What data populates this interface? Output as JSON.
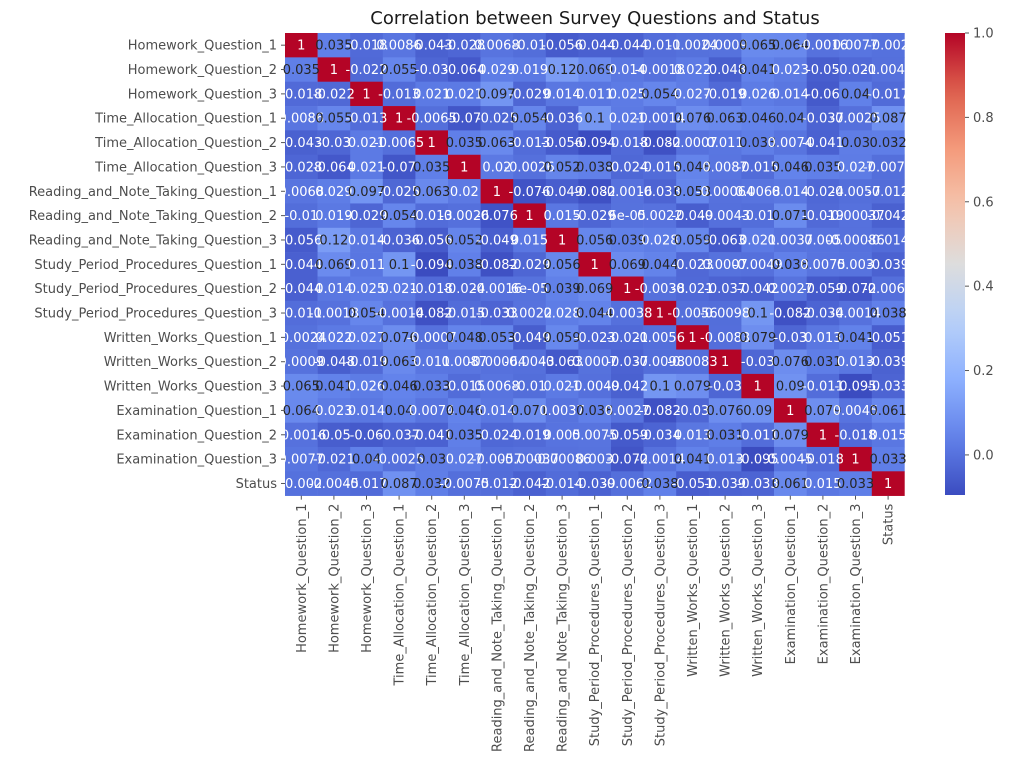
{
  "chart_data": {
    "type": "heatmap",
    "title": "Correlation between Survey Questions and Status",
    "xlabel": "",
    "ylabel": "",
    "labels": [
      "Homework_Question_1",
      "Homework_Question_2",
      "Homework_Question_3",
      "Time_Allocation_Question_1",
      "Time_Allocation_Question_2",
      "Time_Allocation_Question_3",
      "Reading_and_Note_Taking_Question_1",
      "Reading_and_Note_Taking_Question_2",
      "Reading_and_Note_Taking_Question_3",
      "Study_Period_Procedures_Question_1",
      "Study_Period_Procedures_Question_2",
      "Study_Period_Procedures_Question_3",
      "Written_Works_Question_1",
      "Written_Works_Question_2",
      "Written_Works_Question_3",
      "Examination_Question_1",
      "Examination_Question_2",
      "Examination_Question_3",
      "Status"
    ],
    "matrix": [
      [
        "1",
        "0.035",
        "-0.018",
        "0.0086",
        "-0.043",
        "-0.028",
        "0.0068",
        "-0.01",
        "-0.056",
        "-0.044",
        "-0.044",
        "-0.011",
        "-0.0024",
        "0.0009",
        "0.065",
        "0.064",
        "-0.0016",
        "0.0077",
        "-0.002"
      ],
      [
        "0.035",
        "1",
        "-0.022",
        "0.055",
        "-0.03",
        "-0.064",
        "0.029",
        "0.019",
        "0.12",
        "0.069",
        "0.014",
        "-0.0018",
        "0.022",
        "-0.048",
        "0.041",
        "0.023",
        "-0.05",
        "-0.021",
        "-0.0045"
      ],
      [
        "-0.018",
        "-0.022",
        "1",
        "-0.013",
        "0.021",
        "0.021",
        "0.097",
        "-0.029",
        "0.014",
        "0.011",
        "0.025",
        "0.054",
        "0.027",
        "-0.019",
        "0.026",
        "0.014",
        "-0.06",
        "0.04",
        "-0.017"
      ],
      [
        "0.0086",
        "0.055",
        "-0.013",
        "1",
        "-0.0065",
        "-0.07",
        "-0.025",
        "0.054",
        "-0.036",
        "0.1",
        "0.021",
        "-0.0014",
        "0.076",
        "0.063",
        "0.046",
        "0.04",
        "-0.037",
        "-0.0025",
        "0.087"
      ],
      [
        "-0.043",
        "-0.03",
        "0.021",
        "-0.0065",
        "1",
        "0.035",
        "0.063",
        "-0.013",
        "-0.056",
        "-0.094",
        "-0.018",
        "-0.082",
        "-0.0007",
        "0.011",
        "0.033",
        "0.0074",
        "-0.041",
        "0.03",
        "0.032"
      ],
      [
        "-0.028",
        "-0.064",
        "0.021",
        "-0.07",
        "0.035",
        "1",
        "0.02",
        "-0.0026",
        "0.052",
        "0.038",
        "-0.024",
        "-0.015",
        "0.048",
        "0.0087",
        "-0.015",
        "0.046",
        "0.035",
        "0.027",
        "-0.0075"
      ],
      [
        "0.0068",
        "0.029",
        "0.097",
        "-0.025",
        "0.063",
        "0.02",
        "1",
        "-0.076",
        "-0.049",
        "-0.082",
        "-0.0016",
        "-0.033",
        "0.053",
        "-0.00064",
        "0.0068",
        "0.014",
        "-0.024",
        "-0.0057",
        "-0.012"
      ],
      [
        "-0.01",
        "0.019",
        "-0.029",
        "0.054",
        "-0.013",
        "-0.0026",
        "-0.076",
        "1",
        "0.015",
        "-0.029",
        "6e-05",
        "0.0022",
        "-0.049",
        "-0.0043",
        "-0.01",
        "0.071",
        "-0.019",
        "-0.00037",
        "-0.042"
      ],
      [
        "-0.056",
        "0.12",
        "0.014",
        "-0.036",
        "-0.056",
        "0.052",
        "-0.049",
        "0.015",
        "1",
        "0.056",
        "0.039",
        "0.028",
        "0.059",
        "-0.063",
        "0.021",
        "0.0037",
        "0.005",
        "-0.00086",
        "-0.014"
      ],
      [
        "-0.044",
        "0.069",
        "0.011",
        "0.1",
        "-0.094",
        "0.038",
        "-0.082",
        "-0.029",
        "0.056",
        "1",
        "0.069",
        "0.044",
        "-0.023",
        "0.0007",
        "-0.0049",
        "0.038",
        "0.0075",
        "0.003",
        "-0.039"
      ],
      [
        "-0.044",
        "0.014",
        "0.025",
        "0.021",
        "-0.018",
        "-0.024",
        "-0.0016",
        "6e-05",
        "0.039",
        "0.069",
        "1",
        "-0.0038",
        "-0.021",
        "-0.037",
        "-0.042",
        "0.0027",
        "-0.059",
        "-0.072",
        "-0.0062"
      ],
      [
        "-0.011",
        "-0.0018",
        "0.054",
        "-0.0014",
        "-0.082",
        "-0.015",
        "-0.033",
        "0.0022",
        "0.028",
        "0.044",
        "-0.0038",
        "1",
        "-0.0056",
        "-0.0098",
        "0.1",
        "-0.082",
        "-0.034",
        "-0.0014",
        "0.038"
      ],
      [
        "-0.0024",
        "0.022",
        "0.027",
        "0.076",
        "-0.0007",
        "0.048",
        "0.053",
        "-0.049",
        "0.059",
        "-0.023",
        "-0.021",
        "-0.0056",
        "1",
        "-0.0083",
        "0.079",
        "-0.03",
        "0.013",
        "0.041",
        "-0.051"
      ],
      [
        "0.0009",
        "-0.048",
        "-0.019",
        "0.063",
        "0.011",
        "0.0087",
        "-0.00064",
        "-0.0043",
        "-0.063",
        "0.0007",
        "-0.037",
        "-0.0098",
        "-0.0083",
        "1",
        "-0.03",
        "0.076",
        "0.031",
        "0.013",
        "-0.039"
      ],
      [
        "0.065",
        "0.041",
        "0.026",
        "0.046",
        "0.033",
        "-0.015",
        "0.0068",
        "-0.01",
        "0.021",
        "-0.0049",
        "-0.042",
        "0.1",
        "0.079",
        "-0.03",
        "1",
        "0.09",
        "-0.011",
        "-0.095",
        "-0.033"
      ],
      [
        "0.064",
        "0.023",
        "0.014",
        "0.04",
        "0.0074",
        "0.046",
        "0.014",
        "0.071",
        "0.0037",
        "0.038",
        "0.0027",
        "-0.082",
        "-0.03",
        "0.076",
        "0.09",
        "1",
        "0.079",
        "0.0045",
        "0.061"
      ],
      [
        "-0.0016",
        "-0.05",
        "-0.06",
        "-0.037",
        "-0.041",
        "0.035",
        "-0.024",
        "-0.019",
        "0.005",
        "0.0075",
        "-0.059",
        "-0.034",
        "0.013",
        "0.031",
        "-0.011",
        "0.079",
        "1",
        "-0.018",
        "0.015"
      ],
      [
        "0.0077",
        "-0.021",
        "0.04",
        "-0.0025",
        "0.03",
        "0.027",
        "-0.0057",
        "-0.00037",
        "-0.00086",
        "0.003",
        "-0.072",
        "-0.0014",
        "0.041",
        "0.013",
        "-0.095",
        "0.0045",
        "-0.018",
        "1",
        "0.033"
      ],
      [
        "-0.002",
        "-0.0045",
        "-0.017",
        "0.087",
        "0.032",
        "-0.0075",
        "-0.012",
        "-0.042",
        "-0.014",
        "-0.039",
        "-0.0062",
        "0.038",
        "-0.051",
        "-0.039",
        "-0.033",
        "0.061",
        "0.015",
        "0.033",
        "1"
      ]
    ],
    "colorbar": {
      "vmin": -0.095,
      "vmax": 1,
      "ticks": [
        "0.0",
        "0.2",
        "0.4",
        "0.6",
        "0.8",
        "1.0"
      ],
      "tick_values": [
        0,
        0.2,
        0.4,
        0.6,
        0.8,
        1.0
      ],
      "colormap": "coolwarm"
    },
    "grid": false,
    "legend": "colorbar right"
  }
}
